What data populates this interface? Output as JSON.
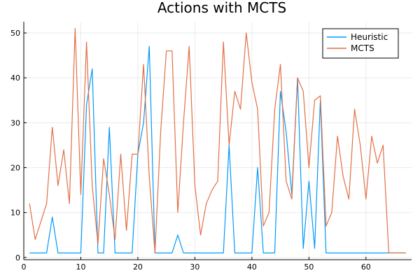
{
  "chart_data": {
    "type": "line",
    "title": "Actions with MCTS",
    "xlabel": "",
    "ylabel": "",
    "xlim": [
      0,
      68
    ],
    "ylim": [
      -0.5,
      52.5
    ],
    "xticks": [
      0,
      10,
      20,
      30,
      40,
      50,
      60
    ],
    "yticks": [
      0,
      10,
      20,
      30,
      40,
      50
    ],
    "grid": true,
    "legend_position": "top-right",
    "x": [
      1,
      2,
      3,
      4,
      5,
      6,
      7,
      8,
      9,
      10,
      11,
      12,
      13,
      14,
      15,
      16,
      17,
      18,
      19,
      20,
      21,
      22,
      23,
      24,
      25,
      26,
      27,
      28,
      29,
      30,
      31,
      32,
      33,
      34,
      35,
      36,
      37,
      38,
      39,
      40,
      41,
      42,
      43,
      44,
      45,
      46,
      47,
      48,
      49,
      50,
      51,
      52,
      53,
      54,
      55,
      56,
      57,
      58,
      59,
      60,
      61,
      62,
      63,
      64,
      65,
      66,
      67
    ],
    "series": [
      {
        "name": "Heuristic",
        "color": "#009AFA",
        "values": [
          1,
          1,
          1,
          1,
          9,
          1,
          1,
          1,
          1,
          1,
          34,
          42,
          1,
          1,
          29,
          1,
          1,
          1,
          1,
          23,
          30,
          47,
          1,
          1,
          1,
          1,
          5,
          1,
          1,
          1,
          1,
          1,
          1,
          1,
          1,
          25,
          1,
          1,
          1,
          1,
          20,
          1,
          1,
          1,
          37,
          28,
          14,
          40,
          2,
          17,
          2,
          35,
          1,
          1,
          1,
          1,
          1,
          1,
          1,
          1,
          1,
          1,
          1,
          1,
          1,
          1,
          1
        ]
      },
      {
        "name": "MCTS",
        "color": "#E26F46",
        "values": [
          12,
          4,
          8,
          12,
          29,
          16,
          24,
          12,
          51,
          14,
          48,
          16,
          3,
          22,
          14,
          4,
          23,
          6,
          23,
          23,
          43,
          18,
          1,
          28,
          46,
          46,
          10,
          30,
          47,
          16,
          5,
          12,
          15,
          17,
          48,
          25,
          37,
          33,
          50,
          39,
          33,
          7,
          10,
          33,
          43,
          17,
          13,
          40,
          37,
          20,
          35,
          36,
          7,
          10,
          27,
          18,
          13,
          33,
          25,
          13,
          27,
          21,
          25,
          1,
          1,
          1,
          1
        ]
      }
    ]
  }
}
